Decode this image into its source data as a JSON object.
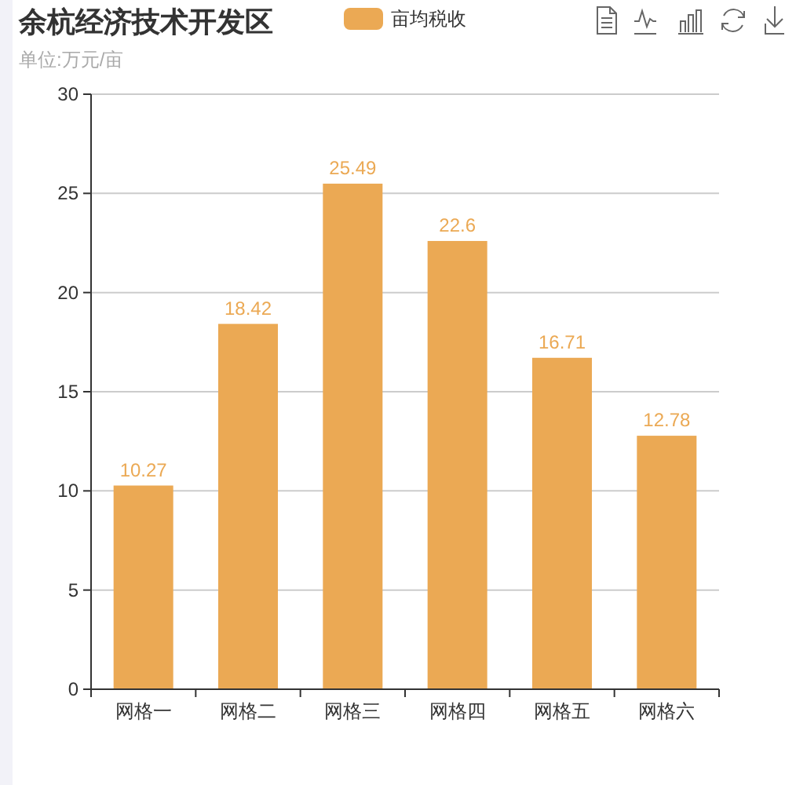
{
  "chart_data": {
    "type": "bar",
    "title": "余杭经济技术开发区",
    "subtitle": "单位:万元/亩",
    "categories": [
      "网格一",
      "网格二",
      "网格三",
      "网格四",
      "网格五",
      "网格六"
    ],
    "series": [
      {
        "name": "亩均税收",
        "color": "#eba954",
        "values": [
          10.27,
          18.42,
          25.49,
          22.6,
          16.71,
          12.78
        ]
      }
    ],
    "ylim": [
      0,
      30
    ],
    "yticks": [
      0,
      5,
      10,
      15,
      20,
      25,
      30
    ],
    "grid": "y",
    "legend": "top",
    "data_labels": true
  }
}
